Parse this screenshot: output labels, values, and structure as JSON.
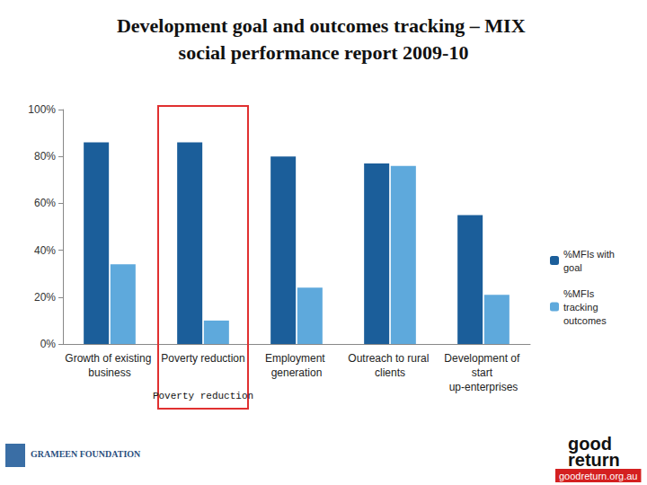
{
  "chart_data": {
    "type": "bar",
    "title": "Development goal and outcomes tracking – MIX social performance report 2009-10",
    "categories": [
      "Growth of existing business",
      "Poverty reduction",
      "Employment generation",
      "Outreach to rural clients",
      "Development of start up-enterprises"
    ],
    "series": [
      {
        "name": "%MFIs with goal",
        "color": "#1b5e9a",
        "values": [
          86,
          86,
          80,
          77,
          55
        ]
      },
      {
        "name": "%MFIs tracking outcomes",
        "color": "#5ea9dc",
        "values": [
          34,
          10,
          24,
          76,
          21
        ]
      }
    ],
    "ylim": [
      0,
      100
    ],
    "yticks": [
      {
        "value": 0,
        "label": "0%"
      },
      {
        "value": 20,
        "label": "20%"
      },
      {
        "value": 40,
        "label": "40%"
      },
      {
        "value": 60,
        "label": "60%"
      },
      {
        "value": 80,
        "label": "80%"
      },
      {
        "value": 100,
        "label": "100%"
      }
    ],
    "grid": false,
    "legend": "right",
    "annotations": [
      "Poverty reduction"
    ]
  },
  "logos": {
    "left": "GRAMEEN FOUNDATION",
    "right": [
      "good",
      "return",
      "goodreturn.org.au"
    ]
  }
}
